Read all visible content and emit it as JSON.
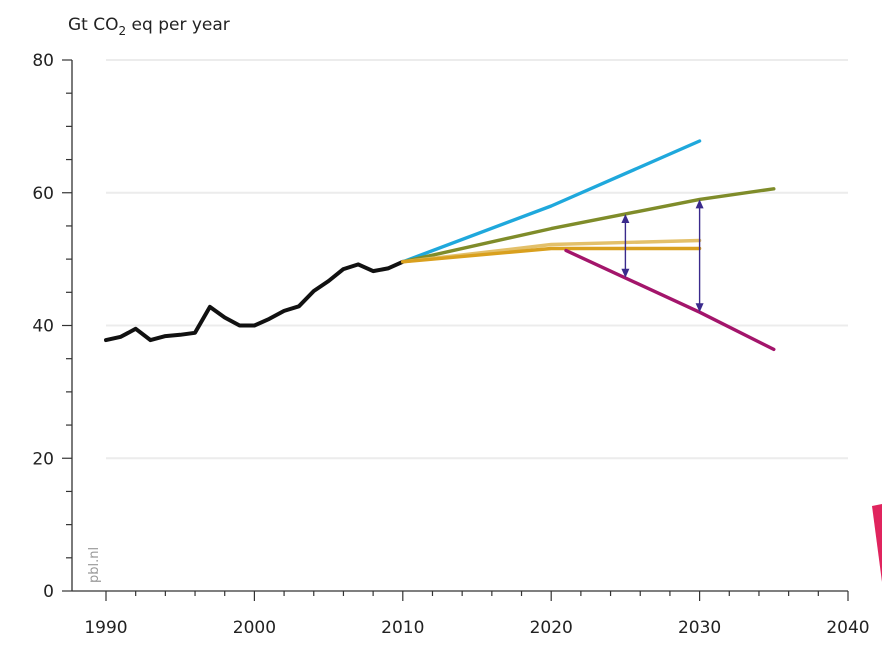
{
  "chart_data": {
    "type": "line",
    "ylabel": "Gt CO",
    "ylabel_sub": "2",
    "ylabel_rest": " eq per year",
    "watermark": "pbl.nl",
    "xlim": [
      1990,
      2040
    ],
    "ylim": [
      0,
      80
    ],
    "x_ticks": [
      1990,
      2000,
      2010,
      2020,
      2030,
      2040
    ],
    "y_ticks": [
      0,
      20,
      40,
      60,
      80
    ],
    "y_tick_labels": [
      "0",
      "20",
      "40",
      "60",
      "80"
    ],
    "x_tick_labels": [
      "1990",
      "2000",
      "2010",
      "2020",
      "2030",
      "2040"
    ],
    "grid": "horizontal",
    "series": [
      {
        "color": "#111111",
        "x": [
          1990,
          1991,
          1992,
          1993,
          1994,
          1995,
          1996,
          1997,
          1998,
          1999,
          2000,
          2001,
          2002,
          2003,
          2004,
          2005,
          2006,
          2007,
          2008,
          2009,
          2010
        ],
        "y": [
          37.8,
          38.3,
          39.5,
          37.8,
          38.4,
          38.6,
          38.9,
          42.8,
          41.2,
          40.0,
          40.0,
          41.0,
          42.2,
          42.9,
          45.2,
          46.7,
          48.5,
          49.2,
          48.2,
          48.6,
          49.6
        ]
      },
      {
        "color": "#1fa8dc",
        "x": [
          2010,
          2020,
          2030
        ],
        "y": [
          49.6,
          58.0,
          67.8
        ]
      },
      {
        "color": "#7f8c2a",
        "x": [
          2010,
          2020,
          2030,
          2035
        ],
        "y": [
          49.6,
          54.6,
          59.0,
          60.6
        ]
      },
      {
        "color": "#e3c06a",
        "x": [
          2010,
          2020,
          2030
        ],
        "y": [
          49.6,
          52.2,
          52.8
        ]
      },
      {
        "color": "#d9a01e",
        "x": [
          2010,
          2020,
          2030
        ],
        "y": [
          49.6,
          51.6,
          51.6
        ]
      },
      {
        "color": "#a3156b",
        "x": [
          2021,
          2030,
          2035
        ],
        "y": [
          51.3,
          42.0,
          36.4
        ]
      }
    ],
    "arrows": [
      {
        "x": 2025,
        "y_from": 47.2,
        "y_to": 56.8,
        "color": "#3a2a8c"
      },
      {
        "x": 2030,
        "y_from": 42.0,
        "y_to": 59.0,
        "color": "#3a2a8c"
      }
    ]
  }
}
